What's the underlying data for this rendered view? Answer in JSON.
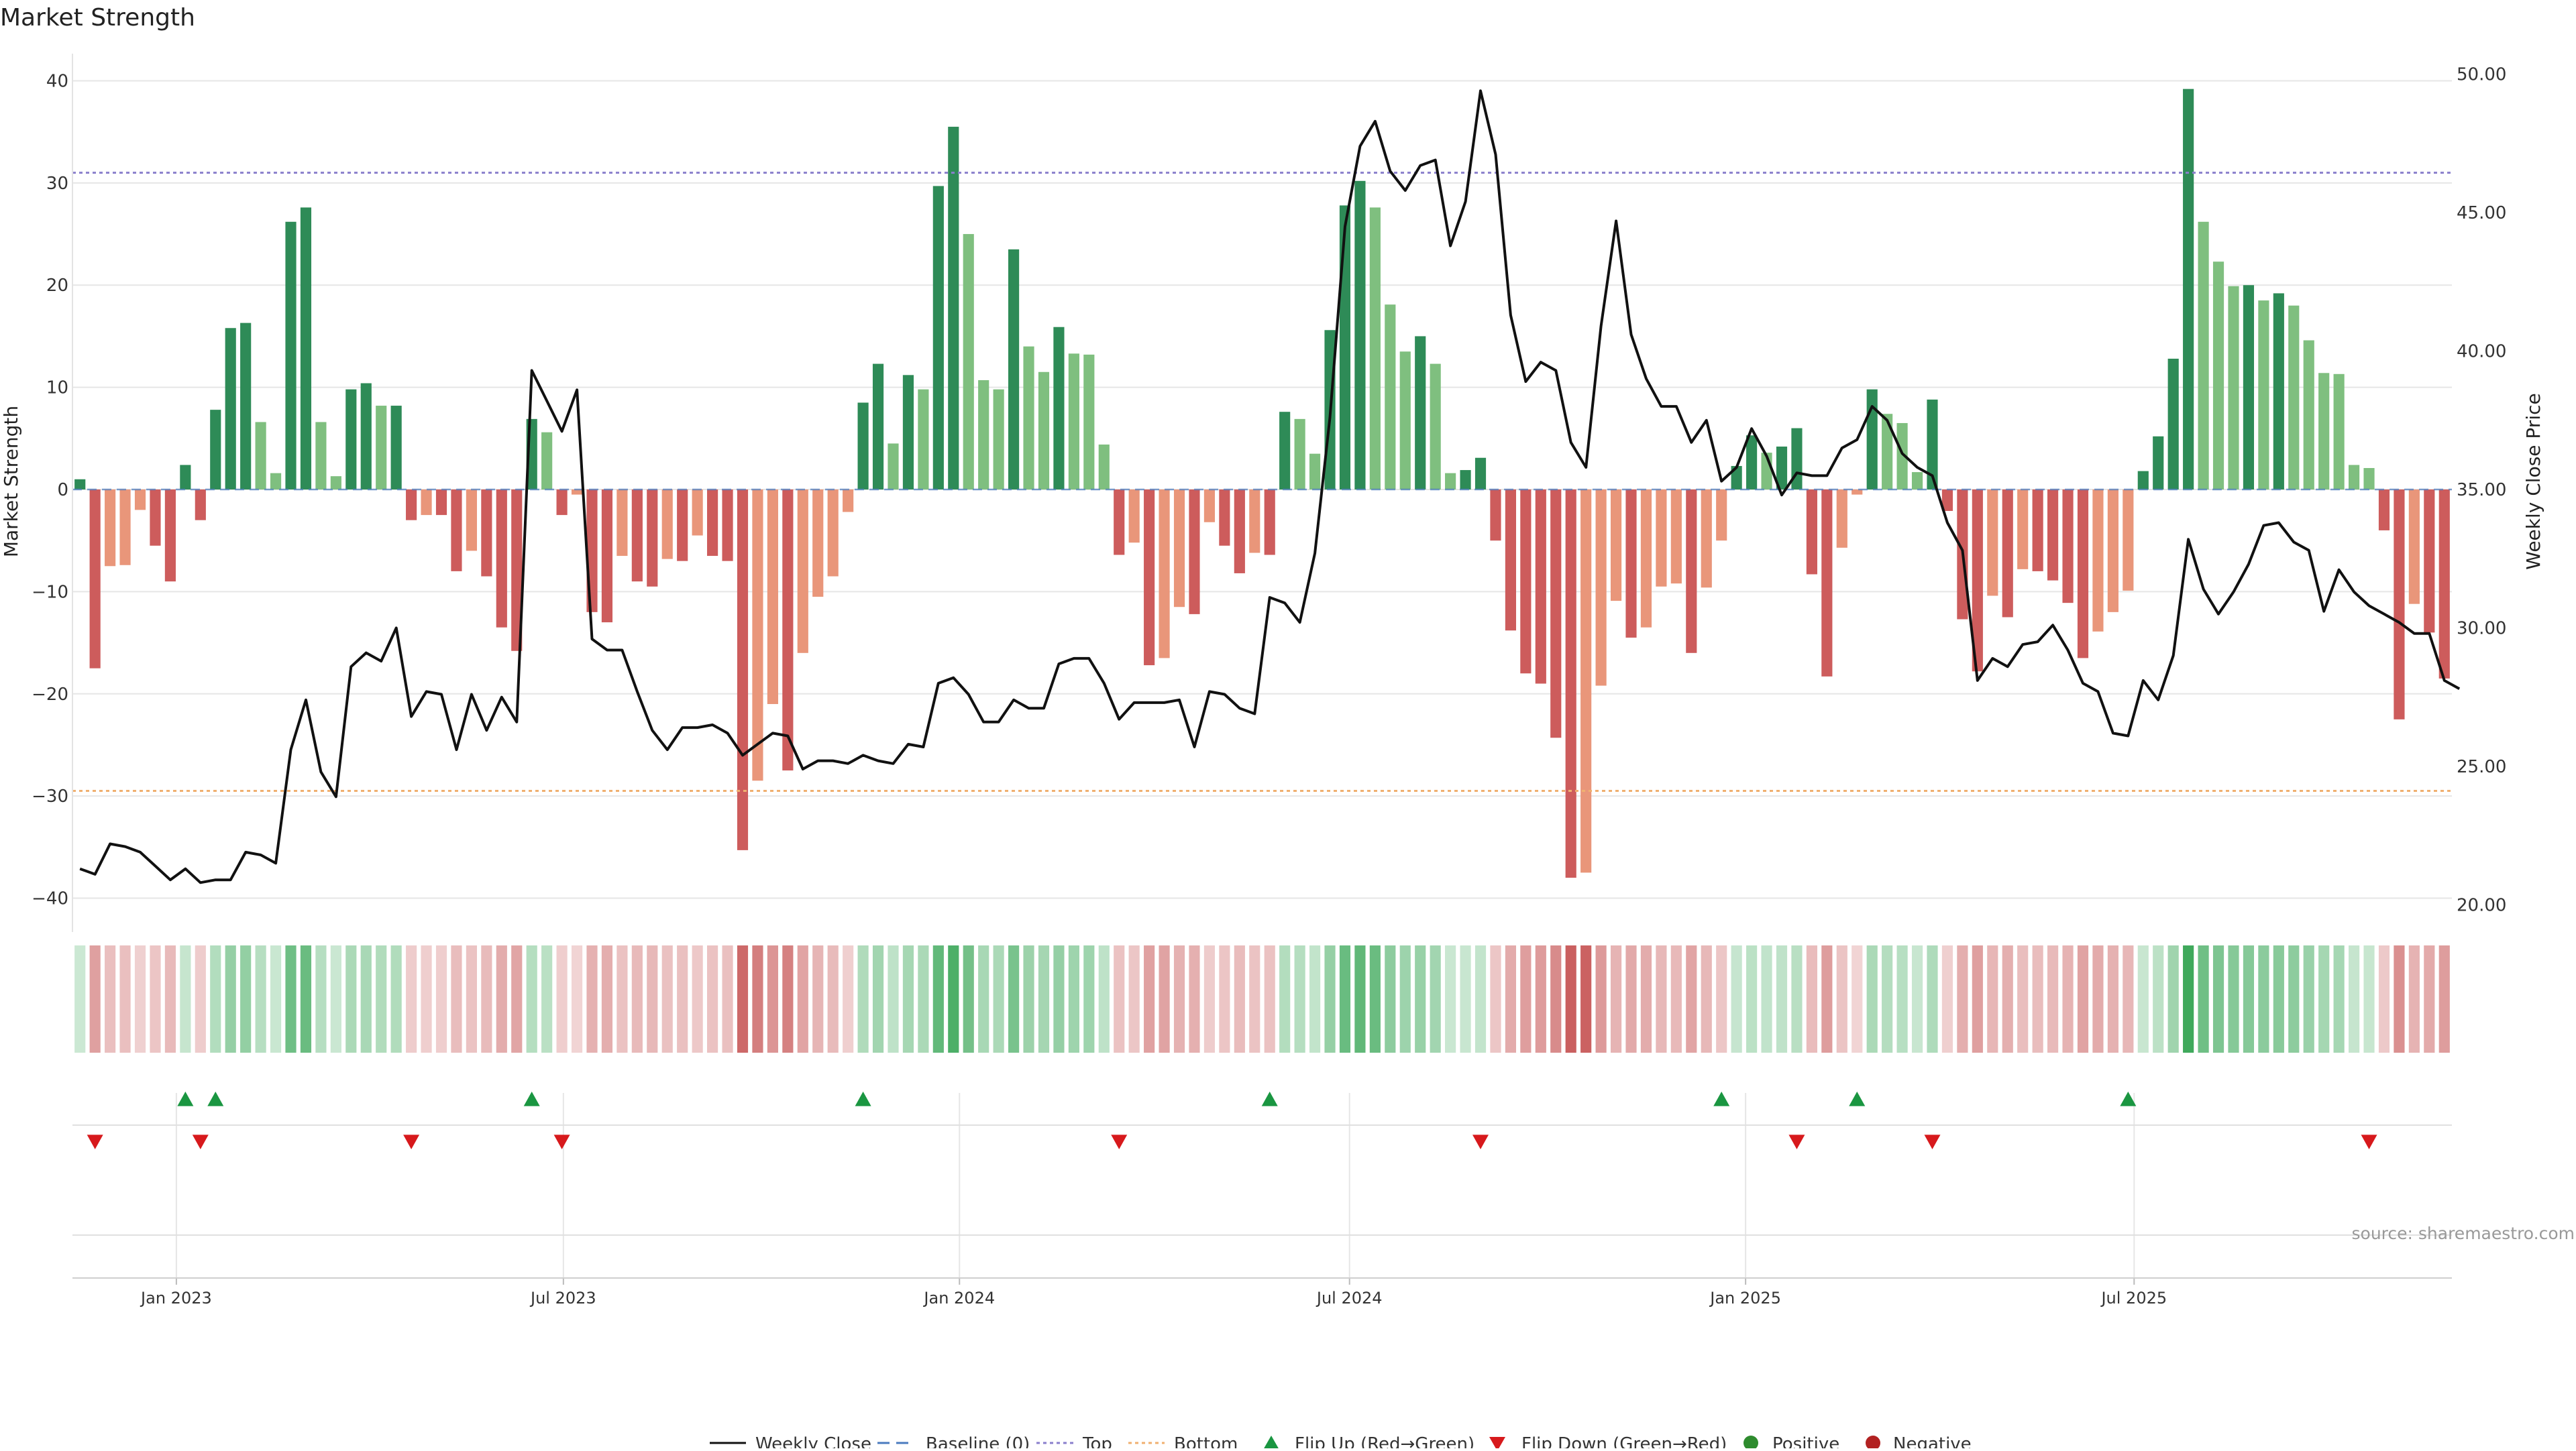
{
  "title": "Market Strength",
  "source": "source: sharemaestro.com",
  "colors": {
    "pos_dark": "#2e8b57",
    "pos_light": "#7fbf7f",
    "neg_dark": "#cd5c5c",
    "neg_light": "#e9967a",
    "close_line": "#111111",
    "baseline": "#4a7bbf",
    "top_line": "#8a7fcc",
    "bottom_line": "#f0b070",
    "flip_up": "#1a9641",
    "flip_down": "#d7191c",
    "positive": "#2e8b2e",
    "negative": "#b22222",
    "grid": "#e6e6e6"
  },
  "legend": {
    "weekly_close": "Weekly Close",
    "baseline": "Baseline (0)",
    "top": "Top",
    "bottom": "Bottom",
    "flip_up": "Flip Up (Red→Green)",
    "flip_down": "Flip Down (Green→Red)",
    "positive": "Positive",
    "negative": "Negative"
  },
  "chart_data": {
    "type": "bar",
    "title": "Market Strength",
    "ylabel_left": "Market Strength",
    "ylabel_right": "Weekly Close Price",
    "ylim_left": [
      -42,
      42
    ],
    "ylim_right": [
      19.5,
      50.5
    ],
    "yticks_left": [
      40,
      30,
      20,
      10,
      0,
      -10,
      -20,
      -30,
      -40
    ],
    "yticks_left_labels": [
      "40",
      "30",
      "20",
      "10",
      "0",
      "−10",
      "−20",
      "−30",
      "−40"
    ],
    "yticks_right": [
      50,
      45,
      40,
      35,
      30,
      25,
      20
    ],
    "yticks_right_labels": [
      "50.00",
      "45.00",
      "40.00",
      "35.00",
      "30.00",
      "25.00",
      "20.00"
    ],
    "top_threshold": 31,
    "bottom_threshold": -29.5,
    "x_range": [
      0,
      155
    ],
    "x_ticks": [
      {
        "week": 6.9,
        "label": "Jan 2023"
      },
      {
        "week": 32.6,
        "label": "Jul 2023"
      },
      {
        "week": 58.9,
        "label": "Jan 2024"
      },
      {
        "week": 84.8,
        "label": "Jul 2024"
      },
      {
        "week": 111.1,
        "label": "Jan 2025"
      },
      {
        "week": 136.9,
        "label": "Jul 2025"
      }
    ],
    "series": [
      {
        "name": "Market Strength",
        "values": [
          1,
          -17.5,
          -7.5,
          -7.4,
          -2,
          -5.5,
          -9,
          2.4,
          -3,
          7.8,
          15.8,
          16.3,
          6.6,
          1.6,
          26.2,
          27.6,
          6.6,
          1.3,
          9.8,
          10.4,
          8.2,
          8.2,
          -3,
          -2.5,
          -2.5,
          -8,
          -6,
          -8.5,
          -13.5,
          -15.8,
          6.9,
          5.6,
          -2.5,
          -0.5,
          -12,
          -13,
          -6.5,
          -9,
          -9.5,
          -6.8,
          -7,
          -4.5,
          -6.5,
          -7,
          -35.3,
          -28.5,
          -21,
          -27.5,
          -16,
          -10.5,
          -8.5,
          -2.2,
          8.5,
          12.3,
          4.5,
          11.2,
          9.8,
          29.7,
          35.5,
          25,
          10.7,
          9.8,
          23.5,
          14,
          11.5,
          15.9,
          13.3,
          13.2,
          4.4,
          -6.4,
          -5.2,
          -17.2,
          -16.5,
          -11.5,
          -12.2,
          -3.2,
          -5.5,
          -8.2,
          -6.2,
          -6.4,
          7.6,
          6.9,
          3.5,
          15.6,
          27.8,
          30.2,
          27.6,
          18.1,
          13.5,
          15,
          12.3,
          1.6,
          1.9,
          3.1,
          -5,
          -13.8,
          -18,
          -19,
          -24.3,
          -38,
          -37.5,
          -19.2,
          -10.9,
          -14.5,
          -13.5,
          -9.5,
          -9.2,
          -16,
          -9.6,
          -5,
          2.3,
          5.3,
          3.6,
          4.2,
          6,
          -8.3,
          -18.3,
          -5.7,
          -0.5,
          9.8,
          7.4,
          6.5,
          1.7,
          8.8,
          -2.1,
          -12.7,
          -17.8,
          -10.4,
          -12.5,
          -7.8,
          -8,
          -8.9,
          -11.1,
          -16.5,
          -13.9,
          -12,
          -9.9,
          1.8,
          5.2,
          12.8,
          39.2,
          26.2,
          22.3,
          19.9,
          20,
          18.5,
          19.2,
          18,
          14.6,
          11.4,
          11.3,
          2.4,
          2.1,
          -4,
          -22.5,
          -11.2,
          -14,
          -18.5
        ]
      },
      {
        "name": "Weekly Close",
        "values": [
          21.3,
          21.1,
          22.2,
          22.1,
          21.9,
          21.4,
          20.9,
          21.3,
          20.8,
          20.9,
          20.9,
          21.9,
          21.8,
          21.5,
          25.6,
          27.4,
          24.8,
          23.9,
          28.6,
          29.1,
          28.8,
          30.0,
          26.8,
          27.7,
          27.6,
          25.6,
          27.6,
          26.3,
          27.5,
          26.6,
          39.3,
          38.2,
          37.1,
          38.6,
          29.6,
          29.2,
          29.2,
          27.7,
          26.3,
          25.6,
          26.4,
          26.4,
          26.5,
          26.2,
          25.4,
          25.8,
          26.2,
          26.1,
          24.9,
          25.2,
          25.2,
          25.1,
          25.4,
          25.2,
          25.1,
          25.8,
          25.7,
          28.0,
          28.2,
          27.6,
          26.6,
          26.6,
          27.4,
          27.1,
          27.1,
          28.7,
          28.9,
          28.9,
          28.0,
          26.7,
          27.3,
          27.3,
          27.3,
          27.4,
          25.7,
          27.7,
          27.6,
          27.1,
          26.9,
          31.1,
          30.9,
          30.2,
          32.7,
          37.6,
          44.5,
          47.4,
          48.3,
          46.5,
          45.8,
          46.7,
          46.9,
          43.8,
          45.4,
          49.4,
          47.1,
          41.3,
          38.9,
          39.6,
          39.3,
          36.7,
          35.8,
          40.9,
          44.7,
          40.6,
          39.0,
          38.0,
          38.0,
          36.7,
          37.5,
          35.3,
          35.8,
          37.2,
          36.2,
          34.8,
          35.6,
          35.5,
          35.5,
          36.5,
          36.8,
          38.0,
          37.5,
          36.3,
          35.8,
          35.5,
          33.8,
          32.8,
          28.1,
          28.9,
          28.6,
          29.4,
          29.5,
          30.1,
          29.2,
          28.0,
          27.7,
          26.2,
          26.1,
          28.1,
          27.4,
          29.0,
          33.2,
          31.4,
          30.5,
          31.3,
          32.3,
          33.7,
          33.8,
          33.1,
          32.8,
          30.6,
          32.1,
          31.3,
          30.8,
          30.5,
          30.2,
          29.8,
          29.8,
          28.1,
          27.8
        ]
      }
    ],
    "flip_up_weeks": [
      7,
      9,
      30,
      52,
      79,
      109,
      118,
      136
    ],
    "flip_down_weeks": [
      1,
      8,
      22,
      32,
      69,
      93,
      114,
      123,
      152
    ]
  }
}
